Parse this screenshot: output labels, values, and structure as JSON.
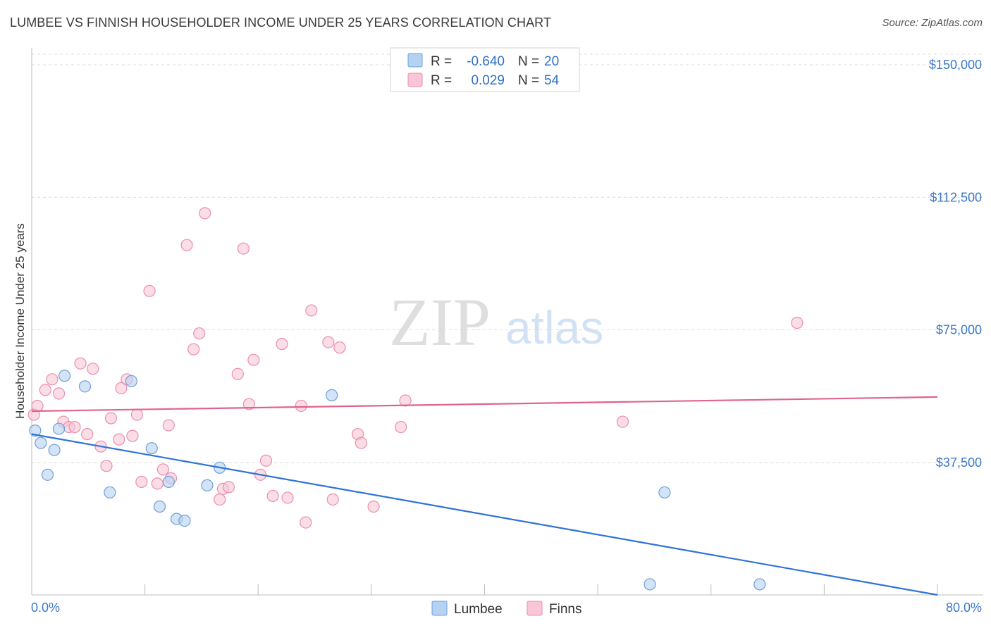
{
  "title": "LUMBEE VS FINNISH HOUSEHOLDER INCOME UNDER 25 YEARS CORRELATION CHART",
  "source": "Source: ZipAtlas.com",
  "watermark": {
    "zip": "ZIP",
    "atlas": "atlas"
  },
  "legend_top": {
    "rows": [
      {
        "r_label": "R =",
        "r_value": "-0.640",
        "n_label": "N =",
        "n_value": "20"
      },
      {
        "r_label": "R =",
        "r_value": "0.029",
        "n_label": "N =",
        "n_value": "54"
      }
    ]
  },
  "legend_bottom": {
    "items": [
      "Lumbee",
      "Finns"
    ]
  },
  "colors": {
    "lumbee_fill": "#b6d2f2",
    "lumbee_stroke": "#6f9fd8",
    "lumbee_line": "#2f72d6",
    "finns_fill": "#f8c6d6",
    "finns_stroke": "#e98fae",
    "finns_line": "#e0638f",
    "axis_label": "#3d78c8",
    "grid": "#dcdcdc"
  },
  "chart_data": {
    "type": "scatter",
    "title": "LUMBEE VS FINNISH HOUSEHOLDER INCOME UNDER 25 YEARS CORRELATION CHART",
    "xlabel": "",
    "ylabel": "Householder Income Under 25 years",
    "xlim": [
      0,
      80
    ],
    "ylim": [
      0,
      153000
    ],
    "x_tick_labels": [
      "0.0%",
      "80.0%"
    ],
    "y_ticks": [
      37500,
      75000,
      112500,
      150000
    ],
    "y_tick_labels": [
      "$37,500",
      "$75,000",
      "$112,500",
      "$150,000"
    ],
    "grid": true,
    "series": [
      {
        "name": "Lumbee",
        "r": -0.64,
        "n": 20,
        "trend": {
          "x": [
            0,
            80
          ],
          "y": [
            45500,
            0
          ]
        },
        "points": [
          [
            0.3,
            46500
          ],
          [
            0.8,
            43000
          ],
          [
            1.4,
            34000
          ],
          [
            2.0,
            41000
          ],
          [
            2.4,
            47000
          ],
          [
            2.9,
            62000
          ],
          [
            4.7,
            59000
          ],
          [
            6.9,
            29000
          ],
          [
            8.8,
            60500
          ],
          [
            10.6,
            41500
          ],
          [
            11.3,
            25000
          ],
          [
            12.1,
            32000
          ],
          [
            12.8,
            21500
          ],
          [
            13.5,
            21000
          ],
          [
            15.5,
            31000
          ],
          [
            16.6,
            36000
          ],
          [
            26.5,
            56500
          ],
          [
            54.6,
            3000
          ],
          [
            55.9,
            29000
          ],
          [
            64.3,
            3000
          ]
        ]
      },
      {
        "name": "Finns",
        "r": 0.029,
        "n": 54,
        "trend": {
          "x": [
            0,
            80
          ],
          "y": [
            52000,
            56000
          ]
        },
        "points": [
          [
            0.2,
            51000
          ],
          [
            0.5,
            53500
          ],
          [
            1.2,
            58000
          ],
          [
            1.8,
            61000
          ],
          [
            2.4,
            57000
          ],
          [
            2.8,
            49000
          ],
          [
            3.3,
            47500
          ],
          [
            3.8,
            47500
          ],
          [
            4.3,
            65500
          ],
          [
            4.9,
            45500
          ],
          [
            5.4,
            64000
          ],
          [
            6.1,
            42000
          ],
          [
            6.6,
            36500
          ],
          [
            7.0,
            50000
          ],
          [
            7.7,
            44000
          ],
          [
            7.9,
            58500
          ],
          [
            8.4,
            61000
          ],
          [
            8.9,
            45000
          ],
          [
            9.3,
            51000
          ],
          [
            9.7,
            32000
          ],
          [
            10.4,
            86000
          ],
          [
            11.1,
            31500
          ],
          [
            11.6,
            35500
          ],
          [
            12.1,
            48000
          ],
          [
            12.3,
            33000
          ],
          [
            13.7,
            99000
          ],
          [
            14.3,
            69500
          ],
          [
            14.8,
            74000
          ],
          [
            15.3,
            108000
          ],
          [
            16.6,
            27000
          ],
          [
            16.9,
            30000
          ],
          [
            17.4,
            30500
          ],
          [
            18.2,
            62500
          ],
          [
            18.7,
            98000
          ],
          [
            19.2,
            54000
          ],
          [
            19.6,
            66500
          ],
          [
            20.2,
            34000
          ],
          [
            20.7,
            38000
          ],
          [
            21.3,
            28000
          ],
          [
            22.1,
            71000
          ],
          [
            22.6,
            27500
          ],
          [
            23.8,
            53500
          ],
          [
            24.2,
            20500
          ],
          [
            24.7,
            80500
          ],
          [
            26.2,
            71500
          ],
          [
            26.6,
            27000
          ],
          [
            27.2,
            70000
          ],
          [
            28.8,
            45500
          ],
          [
            29.1,
            43000
          ],
          [
            30.2,
            25000
          ],
          [
            32.6,
            47500
          ],
          [
            33.0,
            55000
          ],
          [
            52.2,
            49000
          ],
          [
            67.6,
            77000
          ]
        ]
      }
    ]
  }
}
